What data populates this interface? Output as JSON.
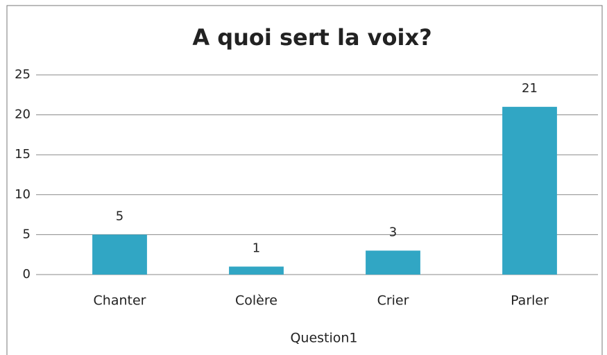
{
  "chart_data": {
    "type": "bar",
    "title": "A quoi sert la voix?",
    "x_label": "Question1",
    "categories": [
      "Chanter",
      "Colère",
      "Crier",
      "Parler"
    ],
    "values": [
      5,
      1,
      3,
      21
    ],
    "color": "#31a6c4",
    "ylim": [
      0,
      25
    ],
    "yticks": [
      0,
      5,
      10,
      15,
      20,
      25
    ],
    "grid": true
  }
}
